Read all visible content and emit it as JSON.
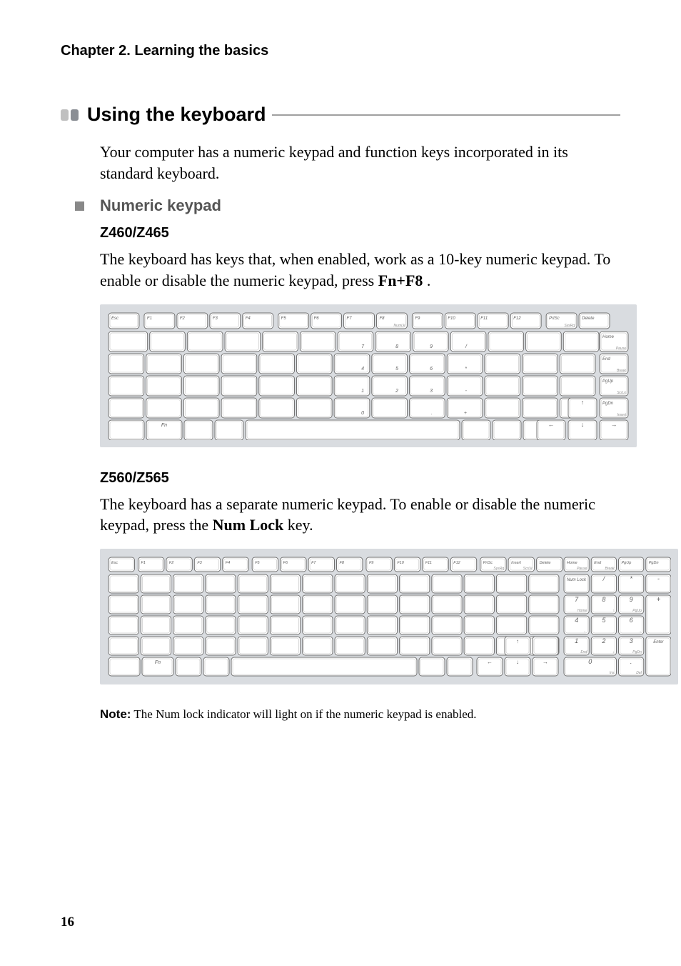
{
  "chapter_title": "Chapter 2. Learning the basics",
  "section": {
    "bullet_colors": [
      "#c0c0c0",
      "#8a8e94"
    ],
    "heading": "Using the keyboard",
    "intro": "Your computer has a numeric keypad and function keys incorporated in its standard keyboard."
  },
  "subsection": {
    "heading": "Numeric keypad"
  },
  "model1": {
    "name": "Z460/Z465",
    "text_pre": "The keyboard has keys that, when enabled, work as a 10-key numeric keypad. To enable or disable the numeric keypad, press ",
    "key_combo": "Fn+F8",
    "text_post": " ."
  },
  "model2": {
    "name": "Z560/Z565",
    "text_pre": "The keyboard has a separate numeric keypad. To enable or disable the numeric keypad, press the ",
    "key_combo": "Num Lock",
    "text_post": " key."
  },
  "note": {
    "label": "Note:",
    "text": " The Num lock indicator will light on if the numeric keypad is enabled."
  },
  "page_number": "16",
  "kb_style": {
    "bg": "#d9dce0",
    "key_fill": "#ffffff",
    "key_stroke": "#707070",
    "text_color": "#606060",
    "secondary_text": "#909090"
  },
  "kb1": {
    "function_row": [
      {
        "top": "Esc"
      },
      {
        "top": "F1"
      },
      {
        "top": "F2"
      },
      {
        "top": "F3"
      },
      {
        "top": "F4"
      },
      {
        "top": "F5"
      },
      {
        "top": "F6"
      },
      {
        "top": "F7"
      },
      {
        "top": "F8",
        "sub": "NumLk"
      },
      {
        "top": "F9"
      },
      {
        "top": "F10"
      },
      {
        "top": "F11"
      },
      {
        "top": "F12"
      },
      {
        "top": "PrtSc",
        "sub": "SysRq"
      },
      {
        "top": "Delete"
      }
    ],
    "right_col": [
      {
        "top": "Home",
        "sub": "Pause"
      },
      {
        "top": "End",
        "sub": "Break"
      },
      {
        "top": "PgUp",
        "sub": "ScrLk"
      },
      {
        "top": "PgDn",
        "sub": "Insert"
      }
    ],
    "num_overlay_row2": [
      "7",
      "8",
      "9",
      "/"
    ],
    "num_overlay_row3": [
      "4",
      "5",
      "6",
      "*"
    ],
    "num_overlay_row4": [
      "1",
      "2",
      "3",
      "-"
    ],
    "num_overlay_row5": [
      "0",
      "",
      ".",
      "+"
    ],
    "fn_label": "Fn"
  },
  "kb2": {
    "function_row": [
      {
        "top": "Esc"
      },
      {
        "top": "F1"
      },
      {
        "top": "F2"
      },
      {
        "top": "F3"
      },
      {
        "top": "F4"
      },
      {
        "top": "F5"
      },
      {
        "top": "F6"
      },
      {
        "top": "F7"
      },
      {
        "top": "F8"
      },
      {
        "top": "F9"
      },
      {
        "top": "F10"
      },
      {
        "top": "F11"
      },
      {
        "top": "F12"
      },
      {
        "top": "PrtSc",
        "sub": "SysRq"
      },
      {
        "top": "Insert",
        "sub": "ScrLk"
      },
      {
        "top": "Delete"
      }
    ],
    "right_top": [
      {
        "top": "Home",
        "sub": "Pause"
      },
      {
        "top": "End",
        "sub": "Break"
      },
      {
        "top": "PgUp"
      },
      {
        "top": "PgDn"
      }
    ],
    "numpad": {
      "r1": [
        "Num Lock",
        "/",
        "*",
        "-"
      ],
      "r2": [
        {
          "n": "7",
          "s": "Home"
        },
        {
          "n": "8",
          "s": "↑"
        },
        {
          "n": "9",
          "s": "PgUp"
        }
      ],
      "r3": [
        {
          "n": "4",
          "s": "←"
        },
        {
          "n": "5",
          "s": ""
        },
        {
          "n": "6",
          "s": "→"
        }
      ],
      "r4": [
        {
          "n": "1",
          "s": "End"
        },
        {
          "n": "2",
          "s": "↓"
        },
        {
          "n": "3",
          "s": "PgDn"
        }
      ],
      "r5": [
        {
          "n": "0",
          "s": "Ins"
        },
        {
          "n": ".",
          "s": "Del"
        }
      ],
      "plus": "+",
      "enter": "Enter"
    },
    "fn_label": "Fn"
  }
}
